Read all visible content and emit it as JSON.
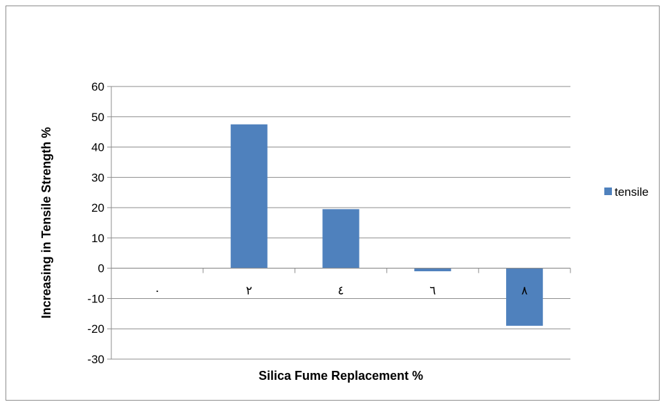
{
  "chart_data": {
    "type": "bar",
    "categories": [
      "٠",
      "٢",
      "٤",
      "٦",
      "٨"
    ],
    "series": [
      {
        "name": "tensile",
        "values": [
          0,
          47.5,
          19.5,
          -1,
          -19
        ],
        "color": "#4f81bd"
      }
    ],
    "yticks": [
      "60",
      "50",
      "40",
      "30",
      "20",
      "10",
      "0",
      "-10",
      "-20",
      "-30"
    ],
    "ylim": [
      -30,
      60
    ],
    "ytick_step": 10,
    "xlabel": "Silica Fume Replacement %",
    "ylabel": "Increasing in Tensile Strength %",
    "grid": true,
    "legend_position": "right"
  }
}
